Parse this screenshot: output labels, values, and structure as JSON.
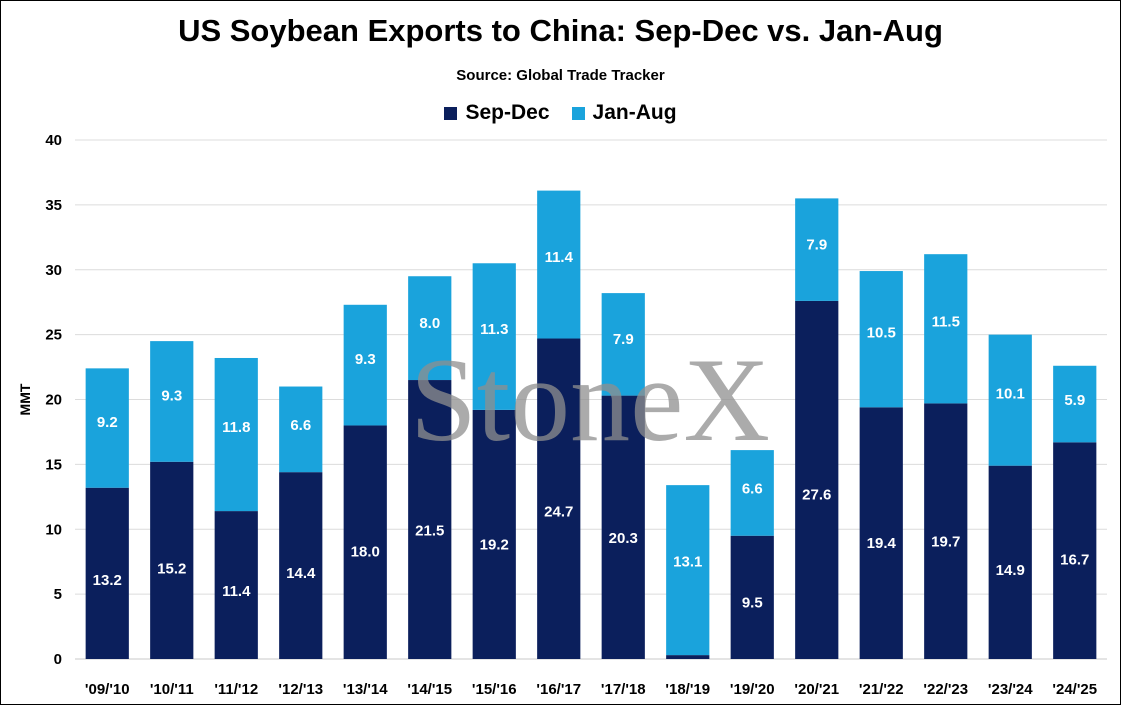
{
  "chart_data": {
    "type": "bar",
    "stacked": true,
    "title": "US Soybean Exports to China: Sep-Dec vs. Jan-Aug",
    "subtitle": "Source: Global Trade Tracker",
    "ylabel": "MMT",
    "xlabel": "",
    "ylim": [
      0,
      40
    ],
    "yticks": [
      0,
      5,
      10,
      15,
      20,
      25,
      30,
      35,
      40
    ],
    "grid": true,
    "legend_position": "top",
    "watermark": "StoneX",
    "categories": [
      "'09/'10",
      "'10/'11",
      "'11/'12",
      "'12/'13",
      "'13/'14",
      "'14/'15",
      "'15/'16",
      "'16/'17",
      "'17/'18",
      "'18/'19",
      "'19/'20",
      "'20/'21",
      "'21/'22",
      "'22/'23",
      "'23/'24",
      "'24/'25"
    ],
    "series": [
      {
        "name": "Sep-Dec",
        "color": "#0b1f5c",
        "values": [
          13.2,
          15.2,
          11.4,
          14.4,
          18.0,
          21.5,
          19.2,
          24.7,
          20.3,
          0.3,
          9.5,
          27.6,
          19.4,
          19.7,
          14.9,
          16.7
        ],
        "labels": [
          "13.2",
          "15.2",
          "11.4",
          "14.4",
          "18.0",
          "21.5",
          "19.2",
          "24.7",
          "20.3",
          "0.3",
          "9.5",
          "27.6",
          "19.4",
          "19.7",
          "14.9",
          "16.7"
        ]
      },
      {
        "name": "Jan-Aug",
        "color": "#1aa3dc",
        "values": [
          9.2,
          9.3,
          11.8,
          6.6,
          9.3,
          8.0,
          11.3,
          11.4,
          7.9,
          13.1,
          6.6,
          7.9,
          10.5,
          11.5,
          10.1,
          5.9
        ],
        "labels": [
          "9.2",
          "9.3",
          "11.8",
          "6.6",
          "9.3",
          "8.0",
          "11.3",
          "11.4",
          "7.9",
          "13.1",
          "6.6",
          "7.9",
          "10.5",
          "11.5",
          "10.1",
          "5.9"
        ]
      }
    ]
  }
}
